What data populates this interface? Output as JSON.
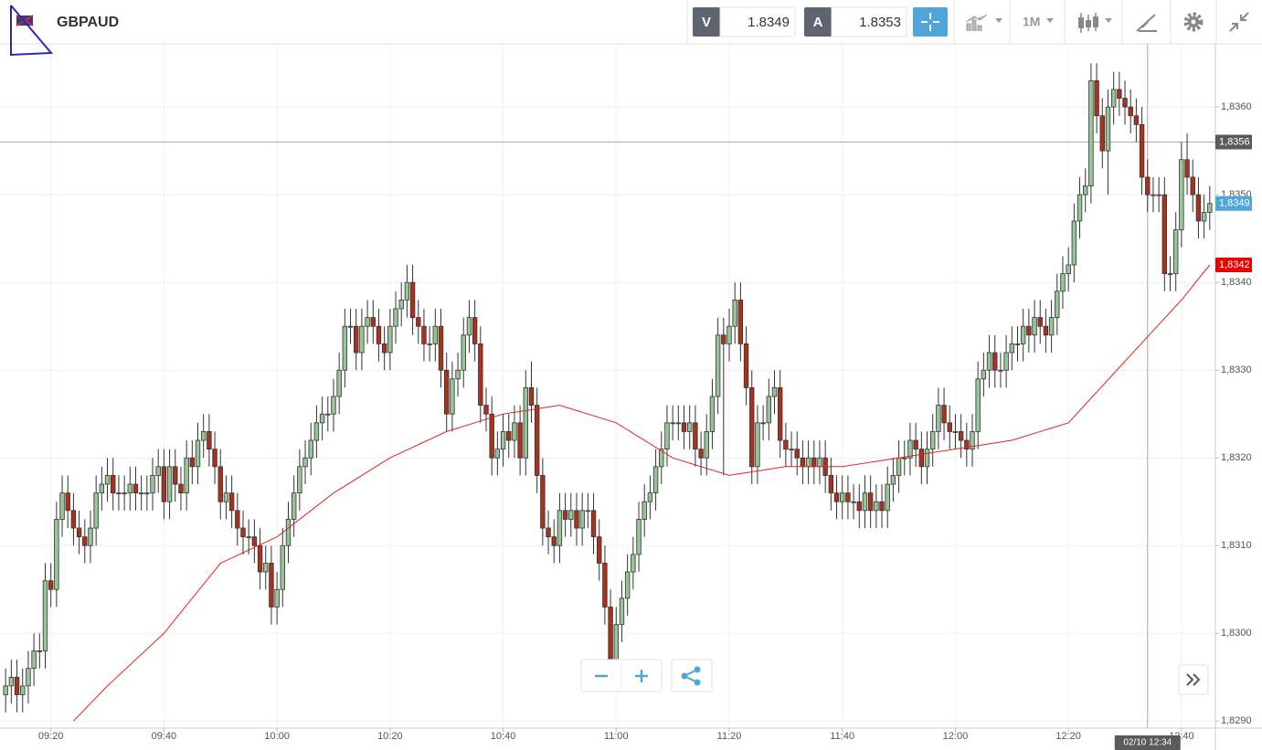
{
  "toolbar": {
    "symbol": "GBPAUD",
    "bid_label": "V",
    "bid": 1.8349,
    "ask_label": "A",
    "ask": 1.8353,
    "timeframe": "1M"
  },
  "chart_data": {
    "type": "candlestick",
    "x": [
      "09:12",
      "09:13",
      "09:14",
      "09:15",
      "09:16",
      "09:17",
      "09:18",
      "09:19",
      "09:20",
      "09:21",
      "09:22",
      "09:23",
      "09:24",
      "09:25",
      "09:26",
      "09:27",
      "09:28",
      "09:29",
      "09:30",
      "09:31",
      "09:32",
      "09:33",
      "09:34",
      "09:35",
      "09:36",
      "09:37",
      "09:38",
      "09:39",
      "09:40",
      "09:41",
      "09:42",
      "09:43",
      "09:44",
      "09:45",
      "09:46",
      "09:47",
      "09:48",
      "09:49",
      "09:50",
      "09:51",
      "09:52",
      "09:53",
      "09:54",
      "09:55",
      "09:56",
      "09:57",
      "09:58",
      "09:59",
      "10:00",
      "10:01",
      "10:02",
      "10:03",
      "10:04",
      "10:05",
      "10:06",
      "10:07",
      "10:08",
      "10:09",
      "10:10",
      "10:11",
      "10:12",
      "10:13",
      "10:14",
      "10:15",
      "10:16",
      "10:17",
      "10:18",
      "10:19",
      "10:20",
      "10:21",
      "10:22",
      "10:23",
      "10:24",
      "10:25",
      "10:26",
      "10:27",
      "10:28",
      "10:29",
      "10:30",
      "10:31",
      "10:32",
      "10:33",
      "10:34",
      "10:35",
      "10:36",
      "10:37",
      "10:38",
      "10:39",
      "10:40",
      "10:41",
      "10:42",
      "10:43",
      "10:44",
      "10:45",
      "10:46",
      "10:47",
      "10:48",
      "10:49",
      "10:50",
      "10:51",
      "10:52",
      "10:53",
      "10:54",
      "10:55",
      "10:56",
      "10:57",
      "10:58",
      "10:59",
      "11:00",
      "11:01",
      "11:02",
      "11:03",
      "11:04",
      "11:05",
      "11:06",
      "11:07",
      "11:08",
      "11:09",
      "11:10",
      "11:11",
      "11:12",
      "11:13",
      "11:14",
      "11:15",
      "11:16",
      "11:17",
      "11:18",
      "11:19",
      "11:20",
      "11:21",
      "11:22",
      "11:23",
      "11:24",
      "11:25",
      "11:26",
      "11:27",
      "11:28",
      "11:29",
      "11:30",
      "11:31",
      "11:32",
      "11:33",
      "11:34",
      "11:35",
      "11:36",
      "11:37",
      "11:38",
      "11:39",
      "11:40",
      "11:41",
      "11:42",
      "11:43",
      "11:44",
      "11:45",
      "11:46",
      "11:47",
      "11:48",
      "11:49",
      "11:50",
      "11:51",
      "11:52",
      "11:53",
      "11:54",
      "11:55",
      "11:56",
      "11:57",
      "11:58",
      "11:59",
      "12:00",
      "12:01",
      "12:02",
      "12:03",
      "12:04",
      "12:05",
      "12:06",
      "12:07",
      "12:08",
      "12:09",
      "12:10",
      "12:11",
      "12:12",
      "12:13",
      "12:14",
      "12:15",
      "12:16",
      "12:17",
      "12:18",
      "12:19",
      "12:20",
      "12:21",
      "12:22",
      "12:23",
      "12:24",
      "12:25",
      "12:26",
      "12:27",
      "12:28",
      "12:29",
      "12:30",
      "12:31",
      "12:32",
      "12:33",
      "12:34",
      "12:35",
      "12:36",
      "12:37",
      "12:38",
      "12:39",
      "12:40",
      "12:41",
      "12:42",
      "12:43",
      "12:44",
      "12:45"
    ],
    "open": [
      1.8293,
      1.8294,
      1.8295,
      1.8293,
      1.8294,
      1.8296,
      1.8298,
      1.8298,
      1.8306,
      1.8305,
      1.8313,
      1.8316,
      1.8314,
      1.8312,
      1.8311,
      1.831,
      1.8312,
      1.8316,
      1.8317,
      1.8318,
      1.8316,
      1.8316,
      1.8316,
      1.8317,
      1.8316,
      1.8316,
      1.8316,
      1.8318,
      1.8319,
      1.8315,
      1.8319,
      1.8317,
      1.8316,
      1.832,
      1.8319,
      1.8322,
      1.8323,
      1.8321,
      1.8319,
      1.8315,
      1.8316,
      1.8314,
      1.8312,
      1.8311,
      1.8311,
      1.831,
      1.8307,
      1.8308,
      1.8303,
      1.8305,
      1.831,
      1.8313,
      1.8316,
      1.8319,
      1.832,
      1.8322,
      1.8324,
      1.8325,
      1.8325,
      1.8327,
      1.833,
      1.8335,
      1.8335,
      1.8332,
      1.8335,
      1.8336,
      1.8335,
      1.8333,
      1.8332,
      1.8335,
      1.8337,
      1.8338,
      1.834,
      1.8336,
      1.8335,
      1.8333,
      1.8333,
      1.8335,
      1.833,
      1.8325,
      1.8329,
      1.833,
      1.8334,
      1.8336,
      1.8333,
      1.8326,
      1.8325,
      1.832,
      1.8321,
      1.8323,
      1.8322,
      1.8324,
      1.832,
      1.8328,
      1.8326,
      1.8318,
      1.8312,
      1.8311,
      1.831,
      1.8314,
      1.8313,
      1.8314,
      1.8312,
      1.8314,
      1.8314,
      1.8311,
      1.8308,
      1.8303,
      1.8297,
      1.8301,
      1.8304,
      1.8307,
      1.8309,
      1.8313,
      1.8315,
      1.8316,
      1.8319,
      1.8321,
      1.8324,
      1.8324,
      1.8324,
      1.8323,
      1.8324,
      1.8321,
      1.832,
      1.8323,
      1.8327,
      1.8334,
      1.8333,
      1.8335,
      1.8338,
      1.8333,
      1.8328,
      1.8319,
      1.8324,
      1.8324,
      1.8327,
      1.8328,
      1.8322,
      1.8321,
      1.8321,
      1.832,
      1.8319,
      1.832,
      1.8319,
      1.832,
      1.8318,
      1.8316,
      1.8315,
      1.8316,
      1.8315,
      1.8315,
      1.8314,
      1.8316,
      1.8314,
      1.8315,
      1.8314,
      1.8317,
      1.8318,
      1.832,
      1.832,
      1.8322,
      1.8321,
      1.8319,
      1.8321,
      1.8323,
      1.8326,
      1.8324,
      1.8323,
      1.8323,
      1.8322,
      1.8321,
      1.8323,
      1.8329,
      1.833,
      1.8332,
      1.833,
      1.833,
      1.8332,
      1.8333,
      1.8333,
      1.8335,
      1.8334,
      1.8336,
      1.8335,
      1.8334,
      1.8336,
      1.8339,
      1.8341,
      1.8342,
      1.8347,
      1.835,
      1.8351,
      1.8363,
      1.8359,
      1.8355,
      1.836,
      1.8362,
      1.8361,
      1.836,
      1.8359,
      1.8358,
      1.8352,
      1.835,
      1.835,
      1.835,
      1.8341,
      1.8341,
      1.8346,
      1.8354,
      1.8352,
      1.835,
      1.8347,
      1.8348
    ],
    "high": [
      1.8296,
      1.8297,
      1.8297,
      1.8296,
      1.8298,
      1.83,
      1.83,
      1.8308,
      1.8308,
      1.8315,
      1.8318,
      1.8318,
      1.8316,
      1.8314,
      1.8313,
      1.8314,
      1.8318,
      1.8319,
      1.832,
      1.832,
      1.8318,
      1.8318,
      1.8319,
      1.8319,
      1.8318,
      1.8318,
      1.832,
      1.8321,
      1.8321,
      1.8321,
      1.8321,
      1.8319,
      1.8322,
      1.8322,
      1.8324,
      1.8325,
      1.8325,
      1.8323,
      1.8321,
      1.8318,
      1.8318,
      1.8316,
      1.8314,
      1.8313,
      1.8313,
      1.8312,
      1.831,
      1.831,
      1.8307,
      1.8312,
      1.8315,
      1.8318,
      1.8321,
      1.8322,
      1.8324,
      1.8326,
      1.8327,
      1.8327,
      1.8329,
      1.8332,
      1.8337,
      1.8337,
      1.8337,
      1.8337,
      1.8338,
      1.8338,
      1.8337,
      1.8335,
      1.8337,
      1.8339,
      1.834,
      1.8342,
      1.8342,
      1.8338,
      1.8337,
      1.8335,
      1.8337,
      1.8337,
      1.8332,
      1.8331,
      1.8332,
      1.8336,
      1.8338,
      1.8338,
      1.8335,
      1.8328,
      1.8327,
      1.8323,
      1.8325,
      1.8325,
      1.8326,
      1.8326,
      1.833,
      1.8331,
      1.8328,
      1.832,
      1.8314,
      1.8313,
      1.8316,
      1.8316,
      1.8316,
      1.8316,
      1.8316,
      1.8316,
      1.8316,
      1.8313,
      1.831,
      1.8305,
      1.8303,
      1.8306,
      1.8309,
      1.8311,
      1.8315,
      1.8317,
      1.8318,
      1.8321,
      1.8323,
      1.8326,
      1.8326,
      1.8326,
      1.8326,
      1.8326,
      1.8326,
      1.8323,
      1.8325,
      1.8329,
      1.8336,
      1.8336,
      1.8337,
      1.834,
      1.834,
      1.8335,
      1.833,
      1.8326,
      1.8326,
      1.8329,
      1.833,
      1.833,
      1.8324,
      1.8323,
      1.8323,
      1.8322,
      1.8322,
      1.8322,
      1.8322,
      1.8322,
      1.832,
      1.8318,
      1.8318,
      1.8318,
      1.8317,
      1.8317,
      1.8318,
      1.8318,
      1.8317,
      1.8317,
      1.8319,
      1.832,
      1.8322,
      1.8322,
      1.8324,
      1.8324,
      1.8323,
      1.8323,
      1.8325,
      1.8328,
      1.8328,
      1.8326,
      1.8325,
      1.8325,
      1.8324,
      1.8325,
      1.8331,
      1.8332,
      1.8334,
      1.8334,
      1.8332,
      1.8334,
      1.8335,
      1.8335,
      1.8337,
      1.8337,
      1.8338,
      1.8338,
      1.8337,
      1.8338,
      1.8341,
      1.8343,
      1.8344,
      1.8349,
      1.8352,
      1.8353,
      1.8365,
      1.8365,
      1.8361,
      1.8362,
      1.8364,
      1.8364,
      1.8363,
      1.8362,
      1.8361,
      1.836,
      1.8354,
      1.8352,
      1.8352,
      1.8352,
      1.8343,
      1.8348,
      1.8356,
      1.8357,
      1.8354,
      1.8352,
      1.835,
      1.8351
    ],
    "low": [
      1.8291,
      1.8292,
      1.8291,
      1.8291,
      1.8292,
      1.8294,
      1.8296,
      1.8296,
      1.8303,
      1.8303,
      1.8311,
      1.8312,
      1.831,
      1.8309,
      1.8308,
      1.8308,
      1.831,
      1.8314,
      1.8315,
      1.8314,
      1.8314,
      1.8314,
      1.8314,
      1.8314,
      1.8314,
      1.8314,
      1.8314,
      1.8316,
      1.8313,
      1.8313,
      1.8315,
      1.8314,
      1.8314,
      1.8317,
      1.8317,
      1.832,
      1.8319,
      1.8317,
      1.8313,
      1.8313,
      1.8312,
      1.831,
      1.8309,
      1.8309,
      1.8308,
      1.8305,
      1.8305,
      1.8301,
      1.8301,
      1.8303,
      1.8308,
      1.8311,
      1.8314,
      1.8317,
      1.8318,
      1.832,
      1.8322,
      1.8323,
      1.8323,
      1.8325,
      1.8328,
      1.8333,
      1.833,
      1.833,
      1.8333,
      1.8333,
      1.8331,
      1.833,
      1.833,
      1.8333,
      1.8335,
      1.8336,
      1.8334,
      1.8333,
      1.8331,
      1.8331,
      1.8331,
      1.8328,
      1.8323,
      1.8323,
      1.8327,
      1.8328,
      1.8332,
      1.8331,
      1.8324,
      1.8323,
      1.8318,
      1.8318,
      1.8319,
      1.832,
      1.832,
      1.8318,
      1.8318,
      1.8324,
      1.8316,
      1.831,
      1.8309,
      1.8308,
      1.8308,
      1.8311,
      1.8311,
      1.831,
      1.831,
      1.8312,
      1.8309,
      1.8306,
      1.8301,
      1.8295,
      1.8295,
      1.8299,
      1.8302,
      1.8305,
      1.8307,
      1.8311,
      1.8313,
      1.8314,
      1.8317,
      1.8319,
      1.8322,
      1.8322,
      1.8321,
      1.8321,
      1.8319,
      1.8318,
      1.8318,
      1.8321,
      1.8325,
      1.8318,
      1.8331,
      1.8333,
      1.8331,
      1.8326,
      1.8317,
      1.8317,
      1.8322,
      1.8322,
      1.8325,
      1.832,
      1.8319,
      1.8319,
      1.8318,
      1.8317,
      1.8317,
      1.8317,
      1.8317,
      1.8316,
      1.8314,
      1.8313,
      1.8313,
      1.8313,
      1.8313,
      1.8312,
      1.8312,
      1.8312,
      1.8312,
      1.8312,
      1.8312,
      1.8315,
      1.8316,
      1.8318,
      1.8318,
      1.8319,
      1.8317,
      1.8317,
      1.8319,
      1.8321,
      1.8322,
      1.8321,
      1.8321,
      1.832,
      1.8319,
      1.8319,
      1.8321,
      1.8327,
      1.8328,
      1.8328,
      1.8328,
      1.8328,
      1.833,
      1.8331,
      1.8331,
      1.8332,
      1.8332,
      1.8333,
      1.8332,
      1.8332,
      1.8334,
      1.8337,
      1.8339,
      1.834,
      1.8345,
      1.8348,
      1.8349,
      1.8357,
      1.8353,
      1.835,
      1.8358,
      1.8359,
      1.8358,
      1.8357,
      1.8356,
      1.835,
      1.8348,
      1.8348,
      1.8348,
      1.8339,
      1.8339,
      1.8339,
      1.8344,
      1.835,
      1.8348,
      1.8345,
      1.8345,
      1.8346
    ],
    "close": [
      1.8294,
      1.8295,
      1.8293,
      1.8294,
      1.8296,
      1.8298,
      1.8298,
      1.8306,
      1.8305,
      1.8313,
      1.8316,
      1.8314,
      1.8312,
      1.8311,
      1.831,
      1.8312,
      1.8316,
      1.8317,
      1.8318,
      1.8316,
      1.8316,
      1.8316,
      1.8317,
      1.8316,
      1.8316,
      1.8316,
      1.8318,
      1.8319,
      1.8315,
      1.8319,
      1.8317,
      1.8316,
      1.832,
      1.8319,
      1.8322,
      1.8323,
      1.8321,
      1.8319,
      1.8315,
      1.8316,
      1.8314,
      1.8312,
      1.8311,
      1.8311,
      1.831,
      1.8307,
      1.8308,
      1.8303,
      1.8305,
      1.831,
      1.8313,
      1.8316,
      1.8319,
      1.832,
      1.8322,
      1.8324,
      1.8325,
      1.8325,
      1.8327,
      1.833,
      1.8335,
      1.8335,
      1.8332,
      1.8335,
      1.8336,
      1.8335,
      1.8333,
      1.8332,
      1.8335,
      1.8337,
      1.8338,
      1.834,
      1.8336,
      1.8335,
      1.8333,
      1.8333,
      1.8335,
      1.833,
      1.8325,
      1.8329,
      1.833,
      1.8334,
      1.8336,
      1.8333,
      1.8326,
      1.8325,
      1.832,
      1.8321,
      1.8323,
      1.8322,
      1.8324,
      1.832,
      1.8328,
      1.8326,
      1.8318,
      1.8312,
      1.8311,
      1.831,
      1.8314,
      1.8313,
      1.8314,
      1.8312,
      1.8314,
      1.8314,
      1.8311,
      1.8308,
      1.8303,
      1.8297,
      1.8301,
      1.8304,
      1.8307,
      1.8309,
      1.8313,
      1.8315,
      1.8316,
      1.8319,
      1.8321,
      1.8324,
      1.8324,
      1.8324,
      1.8323,
      1.8324,
      1.8321,
      1.832,
      1.8323,
      1.8327,
      1.8334,
      1.8333,
      1.8335,
      1.8338,
      1.8333,
      1.8328,
      1.8319,
      1.8324,
      1.8324,
      1.8327,
      1.8328,
      1.8322,
      1.8321,
      1.8321,
      1.832,
      1.8319,
      1.832,
      1.8319,
      1.832,
      1.8318,
      1.8316,
      1.8315,
      1.8316,
      1.8315,
      1.8315,
      1.8314,
      1.8316,
      1.8314,
      1.8315,
      1.8314,
      1.8317,
      1.8318,
      1.832,
      1.832,
      1.8322,
      1.8321,
      1.8319,
      1.8321,
      1.8323,
      1.8326,
      1.8324,
      1.8323,
      1.8323,
      1.8322,
      1.8321,
      1.8323,
      1.8329,
      1.833,
      1.8332,
      1.833,
      1.833,
      1.8332,
      1.8333,
      1.8333,
      1.8335,
      1.8334,
      1.8336,
      1.8335,
      1.8334,
      1.8336,
      1.8339,
      1.8341,
      1.8342,
      1.8347,
      1.835,
      1.8351,
      1.8363,
      1.8359,
      1.8355,
      1.836,
      1.8362,
      1.8361,
      1.836,
      1.8359,
      1.8358,
      1.8352,
      1.835,
      1.835,
      1.835,
      1.8341,
      1.8341,
      1.8346,
      1.8354,
      1.8352,
      1.835,
      1.8347,
      1.8348,
      1.8349
    ],
    "up_color": "#97c597",
    "down_color": "#a9321f",
    "moving_average": {
      "color": "#e02424",
      "x": [
        "09:24",
        "09:30",
        "09:40",
        "09:50",
        "10:00",
        "10:10",
        "10:20",
        "10:30",
        "10:40",
        "10:50",
        "11:00",
        "11:10",
        "11:20",
        "11:30",
        "11:40",
        "11:50",
        "12:00",
        "12:10",
        "12:20",
        "12:30",
        "12:40",
        "12:45"
      ],
      "values": [
        1.829,
        1.8294,
        1.83,
        1.8308,
        1.8311,
        1.8316,
        1.832,
        1.8323,
        1.8325,
        1.8326,
        1.8324,
        1.832,
        1.8318,
        1.8319,
        1.8319,
        1.832,
        1.8321,
        1.8322,
        1.8324,
        1.8331,
        1.8338,
        1.8342
      ]
    },
    "xlim": [
      "09:11",
      "12:46"
    ],
    "xticks": [
      "09:20",
      "09:40",
      "10:00",
      "10:20",
      "10:40",
      "11:00",
      "11:20",
      "11:40",
      "12:00",
      "12:20",
      "12:40"
    ],
    "ylim": [
      1.82892,
      1.83672
    ],
    "yticks": [
      {
        "value": 1.829,
        "label": "1,8290"
      },
      {
        "value": 1.83,
        "label": "1,8300"
      },
      {
        "value": 1.831,
        "label": "1,8310"
      },
      {
        "value": 1.832,
        "label": "1,8320"
      },
      {
        "value": 1.833,
        "label": "1,8330"
      },
      {
        "value": 1.834,
        "label": "1,8340"
      },
      {
        "value": 1.835,
        "label": "1,8350"
      },
      {
        "value": 1.836,
        "label": "1,8360"
      }
    ],
    "grid": true,
    "crosshair": {
      "value": 1.8356,
      "label": "1,8356",
      "time_label": "02/10 12:34",
      "color": "#5a5a5a"
    },
    "price_labels": [
      {
        "value": 1.8349,
        "label": "1,8349",
        "color": "#4fa6da"
      },
      {
        "value": 1.8342,
        "label": "1,8342",
        "color": "#e80000"
      }
    ]
  }
}
